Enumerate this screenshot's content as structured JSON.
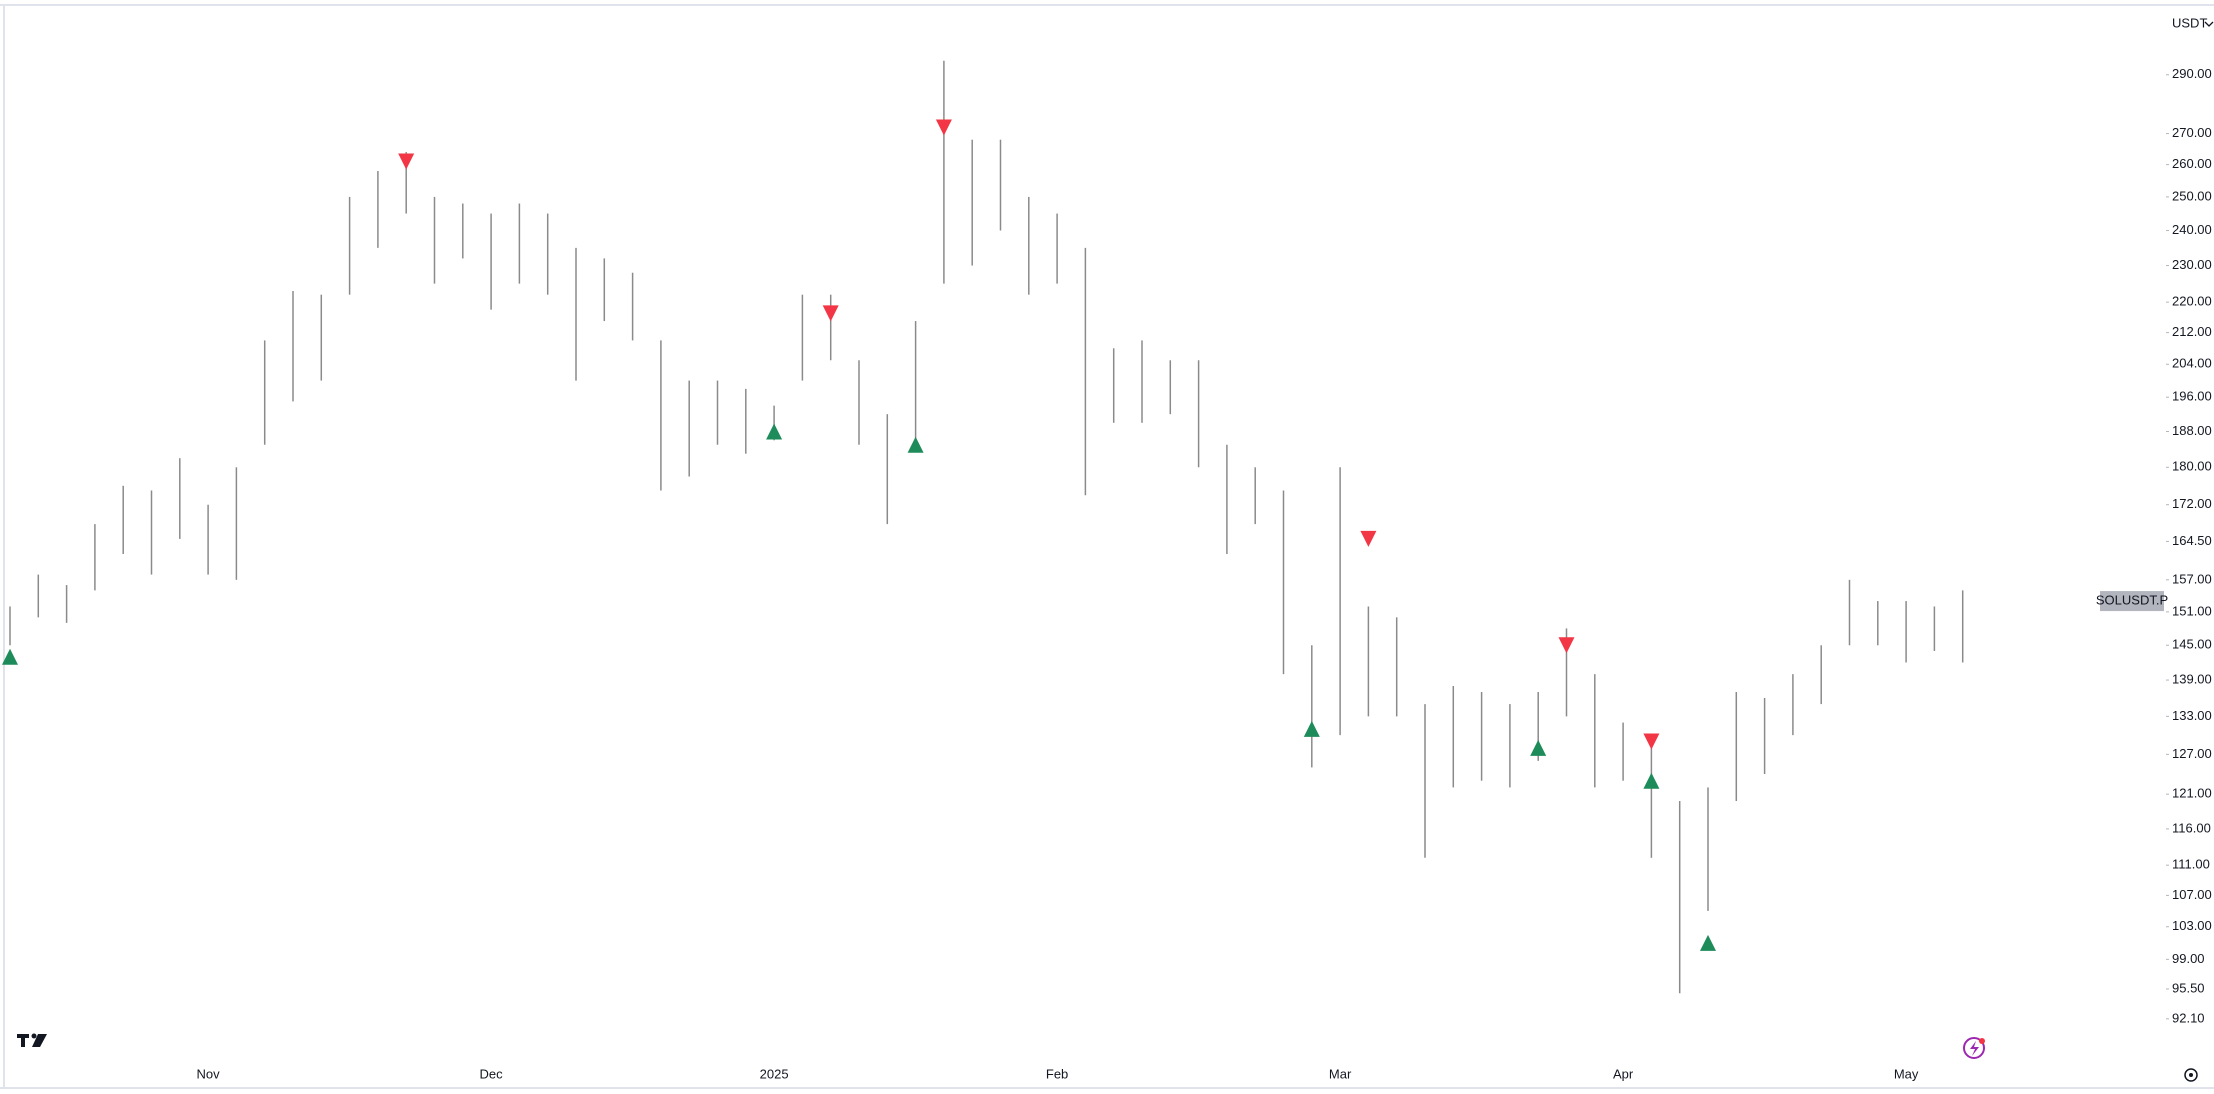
{
  "chart_data": {
    "type": "ohlc",
    "currency": "USDT",
    "symbol": "SOLUSDT.P",
    "last_price": 153,
    "log_scale": true,
    "color": "#8a8a8a",
    "categories": [
      null,
      null,
      null,
      null,
      null,
      null,
      null,
      "Nov",
      null,
      null,
      null,
      null,
      null,
      null,
      null,
      null,
      null,
      "Dec",
      null,
      null,
      null,
      null,
      null,
      null,
      null,
      null,
      null,
      "2025",
      null,
      null,
      null,
      null,
      null,
      null,
      null,
      null,
      null,
      "Feb",
      null,
      null,
      null,
      null,
      null,
      null,
      null,
      null,
      null,
      "Mar",
      null,
      null,
      null,
      null,
      null,
      null,
      null,
      null,
      null,
      "Apr",
      null,
      null,
      null,
      null,
      null,
      null,
      null,
      null,
      null,
      "May",
      null,
      null
    ],
    "high": [
      152,
      158,
      156,
      168,
      176,
      175,
      182,
      172,
      180,
      210,
      223,
      222,
      250,
      258,
      264,
      250,
      248,
      245,
      248,
      245,
      235,
      232,
      228,
      210,
      200,
      200,
      198,
      194,
      222,
      222,
      205,
      192,
      215,
      295,
      268,
      268,
      250,
      245,
      235,
      208,
      210,
      205,
      205,
      185,
      180,
      175,
      145,
      180,
      152,
      150,
      135,
      138,
      137,
      135,
      137,
      148,
      140,
      132,
      130,
      120,
      122,
      137,
      136,
      140,
      145,
      157,
      153,
      153,
      152,
      155
    ],
    "low": [
      145,
      150,
      149,
      155,
      162,
      158,
      165,
      158,
      157,
      185,
      195,
      200,
      222,
      235,
      245,
      225,
      232,
      218,
      225,
      222,
      200,
      215,
      210,
      175,
      178,
      185,
      183,
      186,
      200,
      205,
      185,
      168,
      185,
      225,
      230,
      240,
      222,
      225,
      174,
      190,
      190,
      192,
      180,
      162,
      168,
      140,
      125,
      130,
      133,
      133,
      112,
      122,
      123,
      122,
      126,
      133,
      122,
      123,
      112,
      95,
      105,
      120,
      124,
      130,
      135,
      145,
      145,
      142,
      144,
      142
    ],
    "buy_signals": {
      "color": "#1e8c5a",
      "values": [
        143,
        null,
        null,
        null,
        null,
        null,
        null,
        null,
        null,
        null,
        null,
        null,
        null,
        null,
        null,
        null,
        null,
        null,
        null,
        null,
        null,
        null,
        null,
        null,
        null,
        null,
        null,
        188,
        null,
        null,
        null,
        null,
        185,
        null,
        null,
        null,
        null,
        null,
        null,
        null,
        null,
        null,
        null,
        null,
        null,
        null,
        131,
        null,
        null,
        null,
        null,
        null,
        null,
        null,
        128,
        null,
        null,
        null,
        123,
        null,
        101,
        null,
        null,
        null,
        null,
        null,
        null,
        null,
        null,
        null
      ]
    },
    "sell_signals": {
      "color": "#f23645",
      "values": [
        null,
        null,
        null,
        null,
        null,
        null,
        null,
        null,
        null,
        null,
        null,
        null,
        null,
        null,
        261,
        null,
        null,
        null,
        null,
        null,
        null,
        null,
        null,
        null,
        null,
        null,
        null,
        null,
        null,
        217,
        null,
        null,
        null,
        272,
        null,
        null,
        null,
        null,
        null,
        null,
        null,
        null,
        null,
        null,
        null,
        null,
        null,
        null,
        165,
        null,
        null,
        null,
        null,
        null,
        null,
        145,
        null,
        null,
        129,
        null,
        null,
        null,
        null,
        null,
        null,
        null,
        null,
        null,
        null,
        null
      ]
    },
    "ylim": [
      89,
      315
    ],
    "yticks": [
      {
        "value": 290,
        "label": "290.00"
      },
      {
        "value": 270,
        "label": "270.00"
      },
      {
        "value": 260,
        "label": "260.00"
      },
      {
        "value": 250,
        "label": "250.00"
      },
      {
        "value": 240,
        "label": "240.00"
      },
      {
        "value": 230,
        "label": "230.00"
      },
      {
        "value": 220,
        "label": "220.00"
      },
      {
        "value": 212,
        "label": "212.00"
      },
      {
        "value": 204,
        "label": "204.00"
      },
      {
        "value": 196,
        "label": "196.00"
      },
      {
        "value": 188,
        "label": "188.00"
      },
      {
        "value": 180,
        "label": "180.00"
      },
      {
        "value": 172,
        "label": "172.00"
      },
      {
        "value": 164.5,
        "label": "164.50"
      },
      {
        "value": 157,
        "label": "157.00"
      },
      {
        "value": 151,
        "label": "151.00"
      },
      {
        "value": 145,
        "label": "145.00"
      },
      {
        "value": 139,
        "label": "139.00"
      },
      {
        "value": 133,
        "label": "133.00"
      },
      {
        "value": 127,
        "label": "127.00"
      },
      {
        "value": 121,
        "label": "121.00"
      },
      {
        "value": 116,
        "label": "116.00"
      },
      {
        "value": 111,
        "label": "111.00"
      },
      {
        "value": 107,
        "label": "107.00"
      },
      {
        "value": 103,
        "label": "103.00"
      },
      {
        "value": 99,
        "label": "99.00"
      },
      {
        "value": 95.5,
        "label": "95.50"
      },
      {
        "value": 92.1,
        "label": "92.10"
      }
    ]
  }
}
